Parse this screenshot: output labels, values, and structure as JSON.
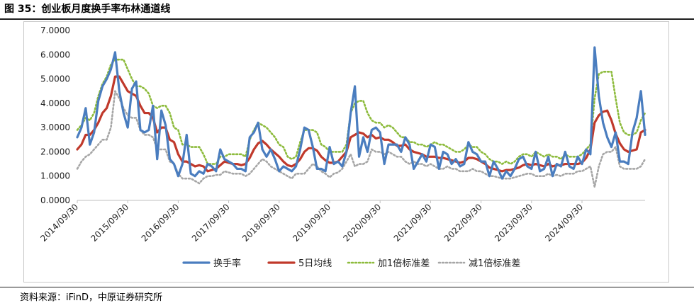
{
  "figure": {
    "title": "图 35：创业板月度换手率布林通道线",
    "source": "资料来源：iFinD，中原证券研究所"
  },
  "colors": {
    "turnover": "#4a7dbf",
    "ma5": "#c0392b",
    "upper": "#8dbb3c",
    "lower": "#a6a6a6"
  },
  "chart_data": {
    "type": "line",
    "title": "",
    "xlabel": "",
    "ylabel": "",
    "ylim": [
      0,
      7
    ],
    "yticks": [
      "0.0000",
      "1.0000",
      "2.0000",
      "3.0000",
      "4.0000",
      "5.0000",
      "6.0000",
      "7.0000"
    ],
    "xticks": [
      "2014/09/30",
      "2015/09/30",
      "2016/09/30",
      "2017/09/30",
      "2018/09/30",
      "2019/09/30",
      "2020/09/30",
      "2021/09/30",
      "2022/09/30",
      "2023/09/30",
      "2024/09/30"
    ],
    "x_start": "2014/09",
    "x_frequency": "monthly",
    "legend_position": "bottom",
    "grid": false,
    "series": [
      {
        "name": "换手率",
        "style": "solid-thick",
        "values": [
          2.6,
          3.0,
          3.8,
          2.3,
          2.8,
          4.1,
          4.7,
          5.0,
          5.4,
          6.1,
          4.5,
          3.6,
          3.0,
          4.6,
          4.9,
          2.9,
          2.8,
          2.9,
          3.9,
          1.7,
          3.7,
          3.1,
          1.7,
          1.5,
          1.0,
          1.5,
          2.7,
          1.1,
          1.0,
          1.2,
          1.1,
          1.5,
          1.4,
          1.2,
          2.1,
          1.7,
          1.6,
          1.5,
          1.3,
          1.3,
          1.2,
          2.6,
          2.8,
          3.2,
          2.1,
          1.8,
          2.1,
          1.7,
          1.2,
          1.4,
          1.3,
          1.2,
          1.4,
          2.1,
          3.0,
          2.9,
          2.2,
          1.3,
          1.3,
          1.2,
          2.2,
          1.5,
          1.6,
          1.4,
          2.0,
          3.6,
          4.7,
          1.8,
          2.6,
          2.0,
          2.9,
          3.0,
          2.8,
          1.5,
          2.3,
          2.3,
          2.3,
          2.0,
          2.6,
          2.3,
          1.3,
          1.6,
          1.9,
          1.6,
          2.3,
          2.2,
          1.3,
          2.0,
          1.9,
          1.5,
          1.7,
          1.4,
          1.5,
          2.4,
          2.0,
          1.9,
          1.6,
          1.6,
          1.0,
          1.6,
          1.3,
          0.9,
          1.2,
          1.0,
          1.3,
          1.7,
          1.8,
          1.4,
          1.3,
          2.0,
          1.2,
          1.3,
          1.8,
          1.0,
          1.5,
          1.4,
          2.0,
          1.4,
          1.3,
          1.8,
          1.5,
          2.1,
          1.9,
          6.3,
          4.3,
          3.2,
          2.6,
          2.2,
          2.8,
          1.6,
          1.6,
          1.5,
          2.8,
          3.4,
          4.5,
          2.7
        ]
      },
      {
        "name": "5日均线",
        "style": "solid-thick",
        "values": [
          2.1,
          2.3,
          2.7,
          2.7,
          2.9,
          3.2,
          3.6,
          3.8,
          4.3,
          5.1,
          5.1,
          4.8,
          4.5,
          4.4,
          4.3,
          3.9,
          3.6,
          3.6,
          3.4,
          2.8,
          3.0,
          3.0,
          2.5,
          2.4,
          1.9,
          1.6,
          1.6,
          1.5,
          1.4,
          1.45,
          1.4,
          1.2,
          1.25,
          1.3,
          1.45,
          1.6,
          1.55,
          1.5,
          1.5,
          1.45,
          1.5,
          1.75,
          2.1,
          2.35,
          2.45,
          2.3,
          2.1,
          1.95,
          1.8,
          1.6,
          1.45,
          1.4,
          1.5,
          1.7,
          2.0,
          2.15,
          2.15,
          2.05,
          1.8,
          1.65,
          1.55,
          1.55,
          1.6,
          1.8,
          2.0,
          2.6,
          2.7,
          2.8,
          2.75,
          2.6,
          2.7,
          2.55,
          2.6,
          2.5,
          2.5,
          2.4,
          2.25,
          2.25,
          2.3,
          2.1,
          2.0,
          1.95,
          1.9,
          1.8,
          1.8,
          1.8,
          1.75,
          1.75,
          1.7,
          1.65,
          1.6,
          1.55,
          1.6,
          1.75,
          1.75,
          1.7,
          1.6,
          1.5,
          1.35,
          1.3,
          1.25,
          1.2,
          1.25,
          1.25,
          1.3,
          1.35,
          1.45,
          1.5,
          1.45,
          1.5,
          1.45,
          1.4,
          1.5,
          1.4,
          1.45,
          1.45,
          1.5,
          1.5,
          1.5,
          1.5,
          1.55,
          1.75,
          2.1,
          3.2,
          3.5,
          3.65,
          3.7,
          3.3,
          2.75,
          2.35,
          2.1,
          2.0,
          2.05,
          2.1,
          2.8,
          2.9
        ]
      },
      {
        "name": "加1倍标准差",
        "style": "dotted",
        "values": [
          2.9,
          3.1,
          3.4,
          3.3,
          3.6,
          4.3,
          4.8,
          5.1,
          5.6,
          5.8,
          5.8,
          5.8,
          5.4,
          5.0,
          4.7,
          4.7,
          4.6,
          4.4,
          3.9,
          3.8,
          3.9,
          3.9,
          3.6,
          3.0,
          2.9,
          2.3,
          2.3,
          2.2,
          2.2,
          2.2,
          1.9,
          1.5,
          1.5,
          1.5,
          1.8,
          1.8,
          1.9,
          1.9,
          1.9,
          1.9,
          1.8,
          2.5,
          2.9,
          3.2,
          3.1,
          3.0,
          2.8,
          2.6,
          2.3,
          2.2,
          1.8,
          1.7,
          1.8,
          2.4,
          2.9,
          2.9,
          2.9,
          2.8,
          2.3,
          2.2,
          2.0,
          2.0,
          2.0,
          2.0,
          2.3,
          3.6,
          4.0,
          4.1,
          4.1,
          3.6,
          3.3,
          3.2,
          3.2,
          3.0,
          3.1,
          3.0,
          2.8,
          2.6,
          2.6,
          2.4,
          2.4,
          2.3,
          2.3,
          2.2,
          2.3,
          2.4,
          2.3,
          2.3,
          2.2,
          2.1,
          2.0,
          2.0,
          2.1,
          2.3,
          2.2,
          2.2,
          2.0,
          1.9,
          1.7,
          1.6,
          1.6,
          1.5,
          1.6,
          1.5,
          1.6,
          1.8,
          1.9,
          1.9,
          1.8,
          2.0,
          1.9,
          1.8,
          1.9,
          1.8,
          1.8,
          1.7,
          1.9,
          1.8,
          1.8,
          1.8,
          1.9,
          2.1,
          2.3,
          4.2,
          5.2,
          5.3,
          5.3,
          5.3,
          4.2,
          3.2,
          2.8,
          2.7,
          2.7,
          2.8,
          3.3,
          3.6
        ]
      },
      {
        "name": "减1倍标准差",
        "style": "dotted",
        "values": [
          1.3,
          1.6,
          1.8,
          1.9,
          2.1,
          2.3,
          2.5,
          2.5,
          3.0,
          4.5,
          4.2,
          3.8,
          3.5,
          3.4,
          3.4,
          2.9,
          2.7,
          2.7,
          2.6,
          2.1,
          2.1,
          2.1,
          1.6,
          1.5,
          1.1,
          0.9,
          0.9,
          0.9,
          0.8,
          0.7,
          0.9,
          1.0,
          1.0,
          1.05,
          1.05,
          1.2,
          1.15,
          1.1,
          1.1,
          1.1,
          1.0,
          1.1,
          1.3,
          1.5,
          1.7,
          1.6,
          1.4,
          1.3,
          1.2,
          1.1,
          1.0,
          0.9,
          1.1,
          1.1,
          1.1,
          1.3,
          1.5,
          1.4,
          1.2,
          1.1,
          0.95,
          1.1,
          1.15,
          1.3,
          1.6,
          1.9,
          1.4,
          1.5,
          1.5,
          1.6,
          2.1,
          2.0,
          2.0,
          1.9,
          2.0,
          1.9,
          1.8,
          1.8,
          1.6,
          1.5,
          1.6,
          1.5,
          1.5,
          1.4,
          1.5,
          1.4,
          1.3,
          1.3,
          1.4,
          1.3,
          1.3,
          1.2,
          1.2,
          1.2,
          1.3,
          1.2,
          1.2,
          1.1,
          1.0,
          1.0,
          0.95,
          0.9,
          0.9,
          0.9,
          0.95,
          1.0,
          1.05,
          1.1,
          1.1,
          1.0,
          1.0,
          1.0,
          1.1,
          1.0,
          1.05,
          1.0,
          1.1,
          1.1,
          1.1,
          1.2,
          1.2,
          1.3,
          1.4,
          0.55,
          1.4,
          1.9,
          2.0,
          2.0,
          2.2,
          1.4,
          1.3,
          1.3,
          1.3,
          1.3,
          1.4,
          1.7
        ]
      }
    ]
  }
}
